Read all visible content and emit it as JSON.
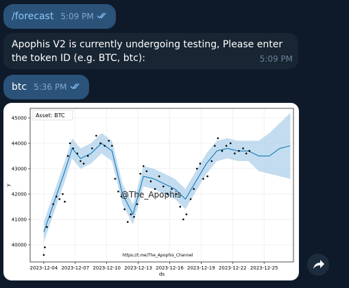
{
  "messages": [
    {
      "text": "/forecast",
      "time": "5:09 PM"
    },
    {
      "text": "Apophis V2 is currently undergoing testing, Please enter the token ID (e.g. BTC, btc):",
      "time": "5:09 PM"
    },
    {
      "text": "btc",
      "time": "5:36 PM"
    }
  ],
  "chart_data": {
    "type": "line",
    "title": "Asset: BTC",
    "xlabel": "ds",
    "ylabel": "y",
    "annotations": [
      "@The_Apophis",
      "https://t.me/The_Apophis_Channel"
    ],
    "xlim": [
      2.7,
      27.8
    ],
    "ylim": [
      39324,
      45378
    ],
    "xticks": [
      {
        "value": 4,
        "label": "2023-12-04"
      },
      {
        "value": 7,
        "label": "2023-12-07"
      },
      {
        "value": 10,
        "label": "2023-12-10"
      },
      {
        "value": 13,
        "label": "2023-12-13"
      },
      {
        "value": 16,
        "label": "2023-12-16"
      },
      {
        "value": 19,
        "label": "2023-12-19"
      },
      {
        "value": 22,
        "label": "2023-12-22"
      },
      {
        "value": 25,
        "label": "2023-12-25"
      }
    ],
    "yticks": [
      40000,
      41000,
      42000,
      43000,
      44000,
      45000
    ],
    "grid": true,
    "forecast": {
      "color": "#0072b2",
      "band_color": "#a9cde8",
      "x": [
        4,
        5,
        6,
        6.7,
        7.5,
        8.5,
        9.5,
        10.5,
        11.5,
        12.5,
        13.5,
        14.5,
        15.5,
        16.5,
        17.5,
        18.5,
        19.5,
        20.5,
        21.5,
        22.5,
        23.5,
        24.5,
        25.5,
        26.5,
        27.5
      ],
      "values": [
        40500,
        41700,
        42900,
        43800,
        43400,
        43600,
        44000,
        43700,
        42000,
        41200,
        42700,
        42600,
        42400,
        42200,
        41800,
        42500,
        43200,
        43700,
        43800,
        43700,
        43700,
        43500,
        43500,
        43800,
        43900
      ],
      "lower": [
        40100,
        41300,
        42500,
        43400,
        43000,
        43200,
        43600,
        43300,
        41600,
        40800,
        42300,
        42200,
        42000,
        41800,
        41400,
        42100,
        42800,
        43300,
        43400,
        43300,
        43300,
        42900,
        42800,
        42700,
        42600
      ],
      "upper": [
        40900,
        42100,
        43300,
        44200,
        43800,
        44000,
        44400,
        44100,
        42400,
        41600,
        43100,
        43000,
        42800,
        42600,
        42200,
        42900,
        43600,
        44100,
        44200,
        44100,
        44100,
        44100,
        44400,
        44800,
        45200
      ]
    },
    "observations": {
      "color": "#000000",
      "x": [
        4.0,
        4.1,
        4.3,
        4.6,
        4.9,
        5.2,
        5.5,
        5.8,
        6.0,
        6.3,
        6.5,
        6.8,
        7.2,
        7.5,
        7.8,
        8.2,
        8.6,
        9.0,
        9.4,
        9.8,
        10.2,
        10.5,
        10.8,
        11.1,
        11.4,
        11.7,
        12.0,
        12.3,
        12.6,
        12.9,
        13.2,
        13.5,
        13.8,
        14.2,
        14.6,
        15.0,
        15.4,
        15.8,
        16.2,
        16.6,
        17.0,
        17.3,
        17.6,
        18.0,
        18.3,
        18.6,
        18.9,
        19.2,
        19.6,
        20.0,
        20.3,
        20.6,
        21.0,
        21.4,
        21.8,
        22.2,
        22.6,
        23.0,
        23.3,
        23.6
      ],
      "values": [
        39600,
        39900,
        40700,
        41100,
        41600,
        41900,
        41800,
        42000,
        41700,
        43500,
        44000,
        43800,
        43600,
        43300,
        43200,
        43500,
        43800,
        44300,
        44000,
        43900,
        44100,
        43900,
        42600,
        42100,
        41900,
        41400,
        40900,
        41200,
        41100,
        41600,
        42800,
        43100,
        42900,
        42500,
        42200,
        42700,
        42300,
        42000,
        42200,
        42000,
        41500,
        41000,
        41200,
        41800,
        42200,
        43000,
        43200,
        42600,
        42700,
        43300,
        43900,
        44200,
        43700,
        43900,
        44000,
        43600,
        43700,
        43800,
        43600,
        43700
      ]
    }
  }
}
